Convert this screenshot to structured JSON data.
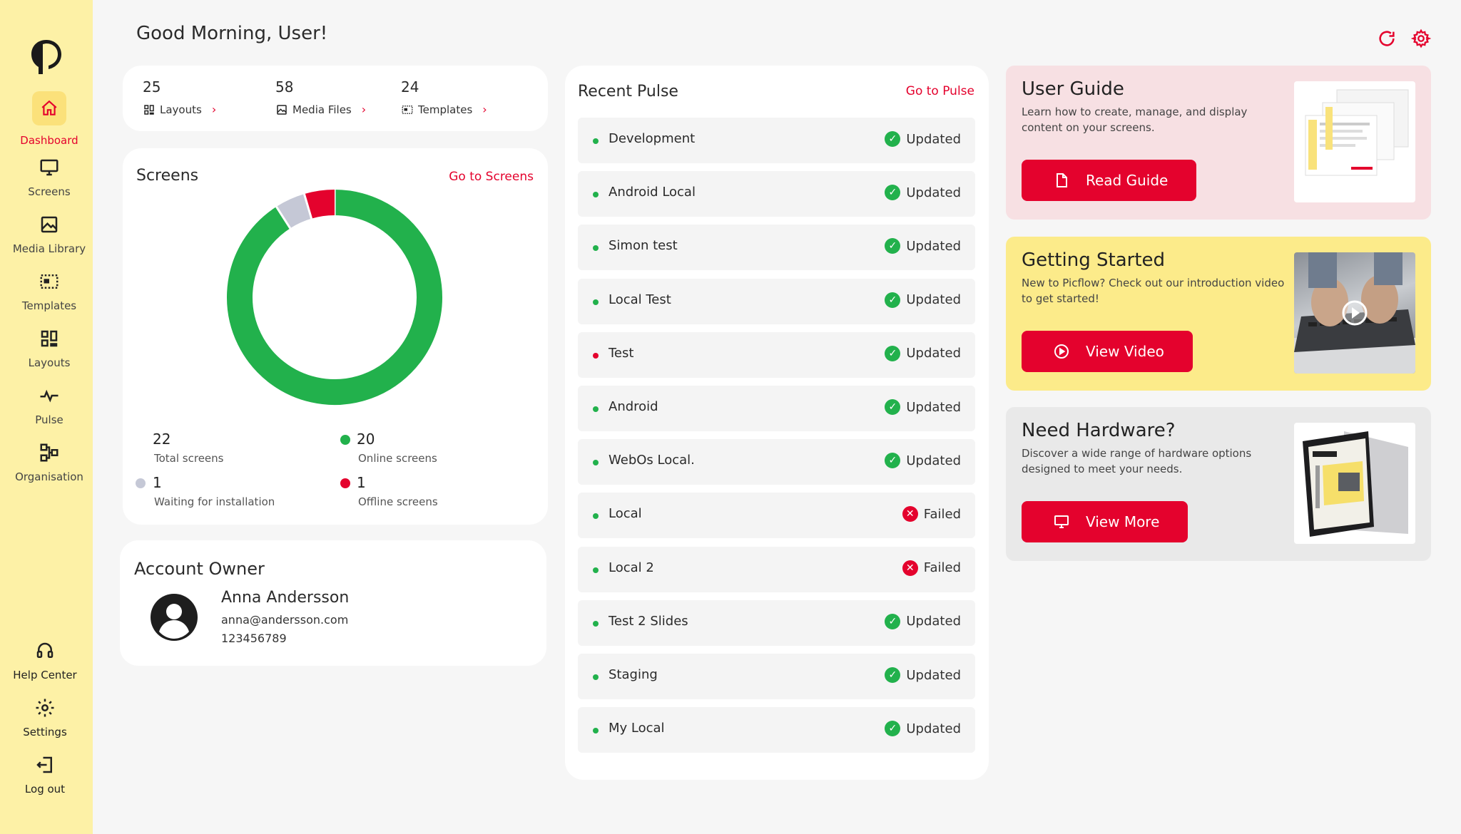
{
  "greeting": "Good Morning, User!",
  "sidebar": {
    "items": [
      {
        "label": "Dashboard",
        "icon": "home-icon"
      },
      {
        "label": "Screens",
        "icon": "monitor-icon"
      },
      {
        "label": "Media Library",
        "icon": "image-icon"
      },
      {
        "label": "Templates",
        "icon": "template-icon"
      },
      {
        "label": "Layouts",
        "icon": "layouts-icon"
      },
      {
        "label": "Pulse",
        "icon": "pulse-icon"
      },
      {
        "label": "Organisation",
        "icon": "organisation-icon"
      }
    ],
    "bottom": [
      {
        "label": "Help Center",
        "icon": "headset-icon"
      },
      {
        "label": "Settings",
        "icon": "gear-icon"
      },
      {
        "label": "Log out",
        "icon": "logout-icon"
      }
    ]
  },
  "stats": [
    {
      "count": "25",
      "label": "Layouts"
    },
    {
      "count": "58",
      "label": "Media Files"
    },
    {
      "count": "24",
      "label": "Templates"
    }
  ],
  "screens": {
    "title": "Screens",
    "link": "Go to Screens",
    "total": {
      "count": "22",
      "label": "Total screens"
    },
    "online": {
      "count": "20",
      "label": "Online screens"
    },
    "waiting": {
      "count": "1",
      "label": "Waiting for installation"
    },
    "offline": {
      "count": "1",
      "label": "Offline screens"
    }
  },
  "chart_data": {
    "type": "pie",
    "categories": [
      "Online screens",
      "Waiting for installation",
      "Offline screens"
    ],
    "values": [
      20,
      1,
      1
    ],
    "colors": [
      "#22b14c",
      "#c5c8d6",
      "#e4022d"
    ],
    "donut": true
  },
  "account": {
    "title": "Account Owner",
    "name": "Anna Andersson",
    "email": "anna@andersson.com",
    "phone": "123456789"
  },
  "pulse": {
    "title": "Recent Pulse",
    "link": "Go to Pulse",
    "rows": [
      {
        "name": "Development",
        "status": "Updated",
        "dot": "green"
      },
      {
        "name": "Android Local",
        "status": "Updated",
        "dot": "green"
      },
      {
        "name": "Simon test",
        "status": "Updated",
        "dot": "green"
      },
      {
        "name": "Local  Test",
        "status": "Updated",
        "dot": "green"
      },
      {
        "name": "Test",
        "status": "Updated",
        "dot": "red"
      },
      {
        "name": "Android",
        "status": "Updated",
        "dot": "green"
      },
      {
        "name": "WebOs Local.",
        "status": "Updated",
        "dot": "green"
      },
      {
        "name": "Local",
        "status": "Failed",
        "dot": "green"
      },
      {
        "name": "Local 2",
        "status": "Failed",
        "dot": "green"
      },
      {
        "name": "Test 2 Slides",
        "status": "Updated",
        "dot": "green"
      },
      {
        "name": "Staging",
        "status": "Updated",
        "dot": "green"
      },
      {
        "name": "My Local",
        "status": "Updated",
        "dot": "green"
      }
    ]
  },
  "promos": [
    {
      "title": "User Guide",
      "desc": "Learn how to create, manage, and display content on your screens.",
      "button": "Read Guide",
      "bg": "#f7e0e3"
    },
    {
      "title": "Getting Started",
      "desc": "New to Picflow? Check out our introduction video to get started!",
      "button": "View Video",
      "bg": "#fceb8a"
    },
    {
      "title": "Need Hardware?",
      "desc": "Discover a wide range of hardware options designed to meet your needs.",
      "button": "View More",
      "bg": "#e9e9e9"
    }
  ],
  "colors": {
    "accent": "#e4022d",
    "success": "#22b14c",
    "sidebar": "#fdf1a6"
  }
}
